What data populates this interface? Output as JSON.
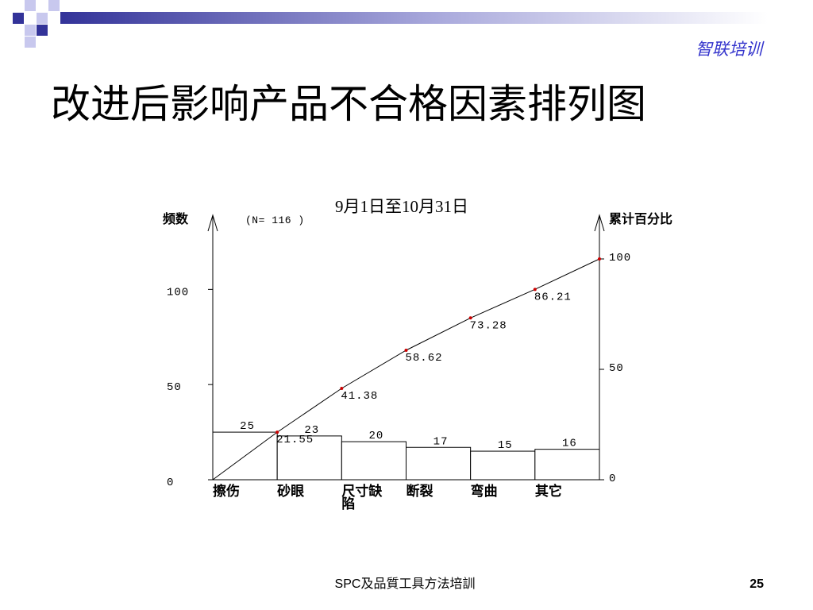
{
  "theme": {
    "accent": "#333399",
    "accent_light": "#c8c8ee",
    "brand_text": "#3333cc",
    "marker": "#cc0000"
  },
  "header": {
    "brand": "智联培训"
  },
  "chart_data": {
    "type": "bar",
    "title": "改进后影响产品不合格因素排列图",
    "subtitle": "9月1日至10月31日",
    "annotations": [
      "(N= 116 )"
    ],
    "categories": [
      "擦伤",
      "砂眼",
      "尺寸缺陷",
      "断裂",
      "弯曲",
      "其它"
    ],
    "series": [
      {
        "type": "bar",
        "axis": "left",
        "values": [
          25,
          23,
          20,
          17,
          15,
          16
        ]
      },
      {
        "type": "line",
        "axis": "right",
        "values": [
          21.55,
          41.38,
          58.62,
          73.28,
          86.21,
          100
        ],
        "data_labels": [
          "21.55",
          "41.38",
          "58.62",
          "73.28",
          "86.21",
          null
        ]
      }
    ],
    "ylabel": "频数",
    "y2label": "累计百分比",
    "ylim": [
      0,
      116
    ],
    "y2lim": [
      0,
      100
    ],
    "yticks": [
      0,
      50,
      100
    ],
    "y2ticks": [
      0,
      50,
      100
    ],
    "grid": false,
    "legend": "none"
  },
  "footer": {
    "text": "SPC及品質工具方法培訓",
    "page_number": "25"
  }
}
